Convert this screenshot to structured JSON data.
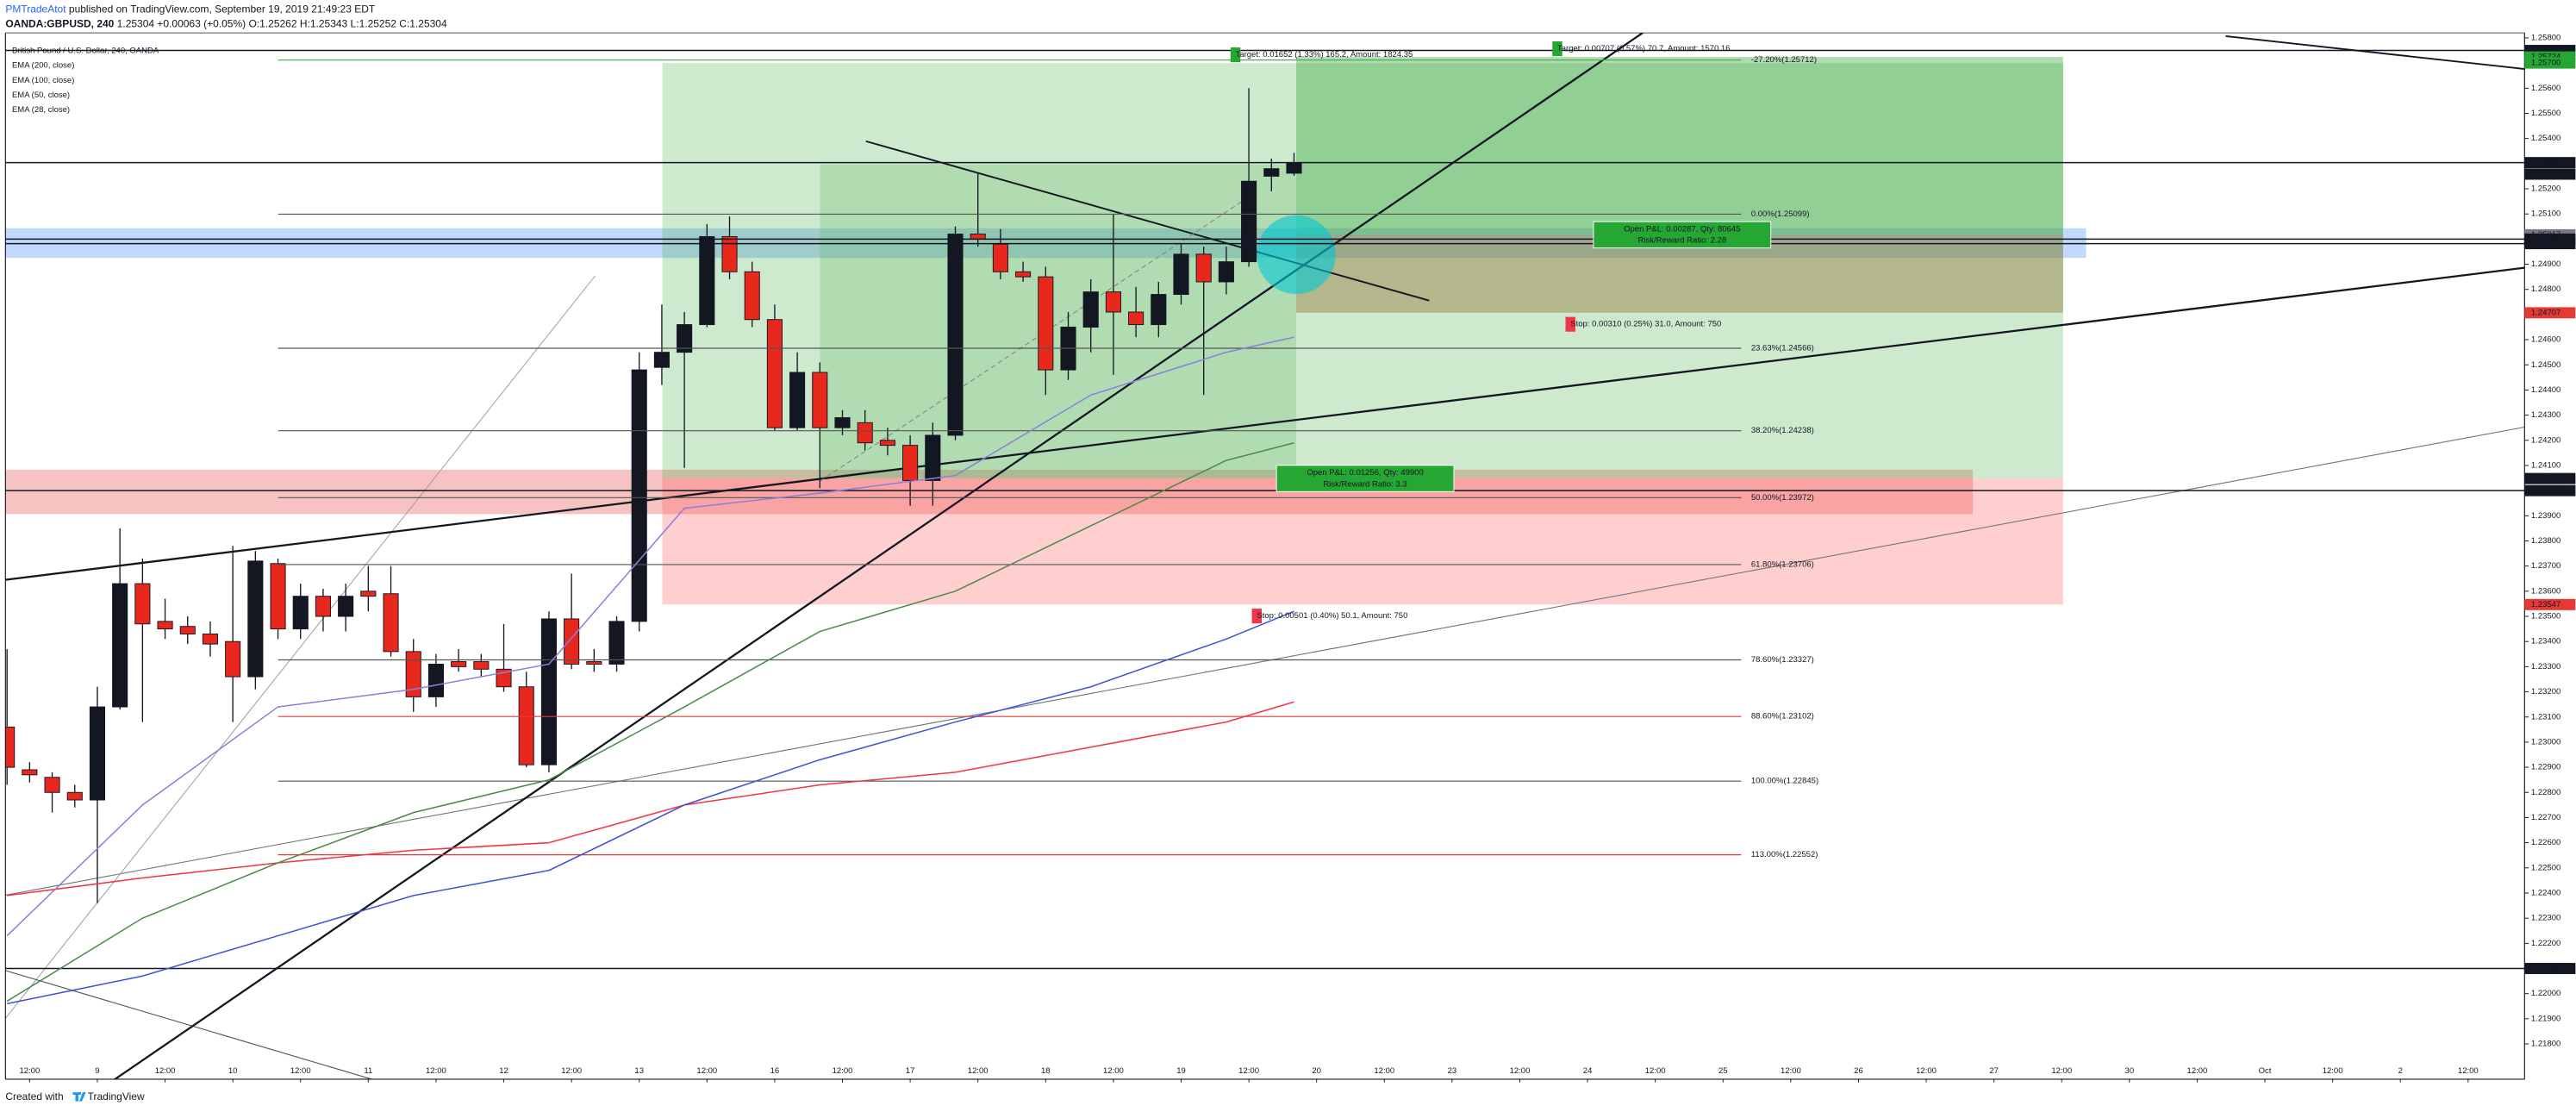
{
  "header": {
    "author": "PMTradeAtot",
    "published": " published on TradingView.com, September 19, 2019 21:49:23 EDT",
    "symbol": "OANDA:GBPUSD, 240",
    "quote": " 1.25304 +0.00063 (+0.05%) O:1.25262 H:1.25343 L:1.25252 C:1.25304"
  },
  "chart_data": {
    "type": "candlestick",
    "title": "British Pound / U.S. Dollar, 240, OANDA",
    "up_color": "#131722",
    "down_color": "#e8271d",
    "open": [
      1.2306,
      1.2289,
      1.2286,
      1.228,
      1.2277,
      1.2314,
      1.2363,
      1.2348,
      1.2346,
      1.2343,
      1.234,
      1.2326,
      1.2371,
      1.2345,
      1.2358,
      1.235,
      1.236,
      1.2359,
      1.2336,
      1.2318,
      1.2332,
      1.2332,
      1.2329,
      1.2322,
      1.2291,
      1.2349,
      1.2332,
      1.2331,
      1.2348,
      1.2449,
      1.2455,
      1.2466,
      1.2501,
      1.2487,
      1.2468,
      1.2425,
      1.2447,
      1.2425,
      1.2427,
      1.242,
      1.2418,
      1.2404,
      1.2422,
      1.2502,
      1.2498,
      1.2487,
      1.2485,
      1.2448,
      1.2465,
      1.2479,
      1.2471,
      1.2466,
      1.2478,
      1.2494,
      1.2483,
      1.2491,
      1.2525,
      1.25262
    ],
    "high": [
      1.2337,
      1.2292,
      1.2288,
      1.2283,
      1.2322,
      1.2385,
      1.2373,
      1.2357,
      1.235,
      1.2348,
      1.2378,
      1.2376,
      1.2373,
      1.2363,
      1.2361,
      1.2363,
      1.237,
      1.237,
      1.2341,
      1.2335,
      1.2337,
      1.2335,
      1.2347,
      1.2328,
      1.2352,
      1.2367,
      1.2337,
      1.235,
      1.2455,
      1.2474,
      1.2471,
      1.2506,
      1.2509,
      1.2491,
      1.2474,
      1.2455,
      1.2451,
      1.2432,
      1.2432,
      1.2425,
      1.2422,
      1.2427,
      1.2505,
      1.2526,
      1.2504,
      1.2491,
      1.2489,
      1.2471,
      1.2484,
      1.251,
      1.2481,
      1.2483,
      1.2498,
      1.2497,
      1.2497,
      1.256,
      1.2532,
      1.25343
    ],
    "low": [
      1.2283,
      1.2284,
      1.2272,
      1.2274,
      1.2236,
      1.2313,
      1.2308,
      1.2341,
      1.2339,
      1.2334,
      1.2308,
      1.2321,
      1.2341,
      1.2341,
      1.2344,
      1.2344,
      1.2352,
      1.2334,
      1.2312,
      1.2314,
      1.2328,
      1.2326,
      1.232,
      1.229,
      1.2288,
      1.2329,
      1.2328,
      1.2328,
      1.2344,
      1.2442,
      1.2409,
      1.2465,
      1.2484,
      1.2465,
      1.2424,
      1.2424,
      1.2401,
      1.2422,
      1.2416,
      1.2414,
      1.2394,
      1.2394,
      1.242,
      1.2497,
      1.2484,
      1.2483,
      1.2438,
      1.2444,
      1.2455,
      1.2446,
      1.2461,
      1.2461,
      1.2474,
      1.2438,
      1.2478,
      1.2489,
      1.2519,
      1.25252
    ],
    "close": [
      1.229,
      1.2287,
      1.228,
      1.2277,
      1.2314,
      1.2363,
      1.2347,
      1.2345,
      1.2343,
      1.2339,
      1.2326,
      1.2372,
      1.2345,
      1.2358,
      1.235,
      1.2358,
      1.2358,
      1.2336,
      1.2318,
      1.2331,
      1.233,
      1.2329,
      1.2322,
      1.2291,
      1.2349,
      1.2331,
      1.2331,
      1.2348,
      1.2448,
      1.2455,
      1.2466,
      1.2501,
      1.2487,
      1.2468,
      1.2425,
      1.2447,
      1.2425,
      1.2429,
      1.2419,
      1.2418,
      1.2404,
      1.2422,
      1.2502,
      1.25,
      1.2487,
      1.2485,
      1.2448,
      1.2465,
      1.2479,
      1.2471,
      1.2466,
      1.2478,
      1.2494,
      1.2483,
      1.2491,
      1.2523,
      1.2528,
      1.25304
    ],
    "xlim": [
      -0.07,
      111.5
    ],
    "xticks": [
      {
        "value": 1,
        "label": "12:00"
      },
      {
        "value": 4,
        "label": "9"
      },
      {
        "value": 7,
        "label": "12:00"
      },
      {
        "value": 10,
        "label": "10"
      },
      {
        "value": 13,
        "label": "12:00"
      },
      {
        "value": 16,
        "label": "11"
      },
      {
        "value": 19,
        "label": "12:00"
      },
      {
        "value": 22,
        "label": "12"
      },
      {
        "value": 25,
        "label": "12:00"
      },
      {
        "value": 28,
        "label": "13"
      },
      {
        "value": 31,
        "label": "12:00"
      },
      {
        "value": 34,
        "label": "16"
      },
      {
        "value": 37,
        "label": "12:00"
      },
      {
        "value": 40,
        "label": "17"
      },
      {
        "value": 43,
        "label": "12:00"
      },
      {
        "value": 46,
        "label": "18"
      },
      {
        "value": 49,
        "label": "12:00"
      },
      {
        "value": 52,
        "label": "19"
      },
      {
        "value": 55,
        "label": "12:00"
      },
      {
        "value": 58,
        "label": "20"
      },
      {
        "value": 61,
        "label": "12:00"
      },
      {
        "value": 64,
        "label": "23"
      },
      {
        "value": 67,
        "label": "12:00"
      },
      {
        "value": 70,
        "label": "24"
      },
      {
        "value": 73,
        "label": "12:00"
      },
      {
        "value": 76,
        "label": "25"
      },
      {
        "value": 79,
        "label": "12:00"
      },
      {
        "value": 82,
        "label": "26"
      },
      {
        "value": 85,
        "label": "12:00"
      },
      {
        "value": 88,
        "label": "27"
      },
      {
        "value": 91,
        "label": "12:00"
      },
      {
        "value": 94,
        "label": "30"
      },
      {
        "value": 97,
        "label": "12:00"
      },
      {
        "value": 100,
        "label": "Oct"
      },
      {
        "value": 103,
        "label": "12:00"
      },
      {
        "value": 106,
        "label": "2"
      },
      {
        "value": 109,
        "label": "12:00"
      }
    ],
    "ylim": [
      1.2166,
      1.2582
    ],
    "yticks": [
      {
        "value": 1.218,
        "label": "1.21800"
      },
      {
        "value": 1.219,
        "label": "1.21900"
      },
      {
        "value": 1.22,
        "label": "1.22000"
      },
      {
        "value": 1.221,
        "label": "1.22100"
      },
      {
        "value": 1.222,
        "label": "1.22200"
      },
      {
        "value": 1.223,
        "label": "1.22300"
      },
      {
        "value": 1.224,
        "label": "1.22400"
      },
      {
        "value": 1.225,
        "label": "1.22500"
      },
      {
        "value": 1.226,
        "label": "1.22600"
      },
      {
        "value": 1.227,
        "label": "1.22700"
      },
      {
        "value": 1.228,
        "label": "1.22800"
      },
      {
        "value": 1.229,
        "label": "1.22900"
      },
      {
        "value": 1.23,
        "label": "1.23000"
      },
      {
        "value": 1.231,
        "label": "1.23100"
      },
      {
        "value": 1.232,
        "label": "1.23200"
      },
      {
        "value": 1.233,
        "label": "1.23300"
      },
      {
        "value": 1.234,
        "label": "1.23400"
      },
      {
        "value": 1.235,
        "label": "1.23500"
      },
      {
        "value": 1.236,
        "label": "1.23600"
      },
      {
        "value": 1.237,
        "label": "1.23700"
      },
      {
        "value": 1.238,
        "label": "1.23800"
      },
      {
        "value": 1.239,
        "label": "1.23900"
      },
      {
        "value": 1.24,
        "label": "1.24000"
      },
      {
        "value": 1.241,
        "label": "1.24100"
      },
      {
        "value": 1.242,
        "label": "1.24200"
      },
      {
        "value": 1.243,
        "label": "1.24300"
      },
      {
        "value": 1.244,
        "label": "1.24400"
      },
      {
        "value": 1.245,
        "label": "1.24500"
      },
      {
        "value": 1.246,
        "label": "1.24600"
      },
      {
        "value": 1.247,
        "label": "1.24700"
      },
      {
        "value": 1.248,
        "label": "1.24800"
      },
      {
        "value": 1.249,
        "label": "1.24900"
      },
      {
        "value": 1.25,
        "label": "1.25000"
      },
      {
        "value": 1.251,
        "label": "1.25100"
      },
      {
        "value": 1.252,
        "label": "1.25200"
      },
      {
        "value": 1.253,
        "label": "1.25300"
      },
      {
        "value": 1.254,
        "label": "1.25400"
      },
      {
        "value": 1.255,
        "label": "1.25500"
      },
      {
        "value": 1.256,
        "label": "1.25600"
      },
      {
        "value": 1.257,
        "label": "1.25700"
      },
      {
        "value": 1.258,
        "label": "1.25800"
      }
    ],
    "overlays": [
      {
        "name": "EMA (200, close)",
        "color": "#f23645",
        "x": [
          0,
          6,
          12,
          18,
          24,
          30,
          36,
          42,
          48,
          54,
          57
        ],
        "values": [
          1.2239,
          1.2246,
          1.2252,
          1.2257,
          1.226,
          1.2275,
          1.2283,
          1.2288,
          1.2298,
          1.2308,
          1.2316
        ]
      },
      {
        "name": "EMA (100, close)",
        "color": "#3f51d6",
        "x": [
          0,
          6,
          12,
          18,
          24,
          30,
          36,
          42,
          48,
          54,
          57
        ],
        "values": [
          1.2196,
          1.2207,
          1.2223,
          1.2239,
          1.2249,
          1.2275,
          1.2293,
          1.2308,
          1.2322,
          1.2341,
          1.2352
        ]
      },
      {
        "name": "EMA (50, close)",
        "color": "#4a8a4a",
        "x": [
          0,
          6,
          12,
          18,
          24,
          30,
          36,
          42,
          48,
          54,
          57
        ],
        "values": [
          1.2197,
          1.223,
          1.2252,
          1.2272,
          1.2285,
          1.2314,
          1.2344,
          1.236,
          1.2386,
          1.2412,
          1.2419
        ]
      },
      {
        "name": "EMA (28, close)",
        "color": "#8a80dc",
        "x": [
          0,
          6,
          12,
          18,
          24,
          30,
          36,
          42,
          48,
          54,
          57
        ],
        "values": [
          1.2223,
          1.2275,
          1.2314,
          1.2321,
          1.2331,
          1.2393,
          1.2399,
          1.2406,
          1.2438,
          1.2455,
          1.2461
        ]
      }
    ],
    "fib": [
      {
        "label": "-27.20%(1.25712)",
        "value": 1.25712,
        "color": "#4caf50"
      },
      {
        "label": "0.00%(1.25099)",
        "value": 1.25099,
        "color": "#555555"
      },
      {
        "label": "23.63%(1.24566)",
        "value": 1.24566,
        "color": "#555555"
      },
      {
        "label": "38.20%(1.24238)",
        "value": 1.24238,
        "color": "#555555"
      },
      {
        "label": "50.00%(1.23972)",
        "value": 1.23972,
        "color": "#555555"
      },
      {
        "label": "61.80%(1.23706)",
        "value": 1.23706,
        "color": "#555555"
      },
      {
        "label": "78.60%(1.23327)",
        "value": 1.23327,
        "color": "#555555"
      },
      {
        "label": "88.60%(1.23102)",
        "value": 1.23102,
        "color": "#e53935"
      },
      {
        "label": "100.00%(1.22845)",
        "value": 1.22845,
        "color": "#555555"
      },
      {
        "label": "113.00%(1.22552)",
        "value": 1.22552,
        "color": "#e53935"
      }
    ],
    "price_labels": [
      {
        "value": 1.2575,
        "label": "1.25750",
        "color": "#131722",
        "line": true
      },
      {
        "value": 1.25724,
        "label": "1.25724",
        "color": "#26a633"
      },
      {
        "value": 1.257,
        "label": "1.25700",
        "color": "#26a633"
      },
      {
        "value": 1.25304,
        "label": "1.25304",
        "color": "#131722",
        "line": true
      },
      {
        "value": 1.25017,
        "label": "1.25017",
        "color": "#787b86"
      },
      {
        "value": 1.25,
        "label": "1.25000",
        "color": "#131722",
        "line": true
      },
      {
        "value": 1.24982,
        "label": "1.24982",
        "color": "#131722",
        "line": true
      },
      {
        "value": 1.24707,
        "label": "1.24707",
        "color": "#e53935"
      },
      {
        "value": 1.24048,
        "label": "1.24048",
        "color": "#131722"
      },
      {
        "value": 1.24,
        "label": "1.24000",
        "color": "#131722",
        "line": true
      },
      {
        "value": 1.23547,
        "label": "1.23547",
        "color": "#e53935"
      },
      {
        "value": 1.221,
        "label": "1.22100",
        "color": "#131722",
        "line": true
      }
    ],
    "countdown": "03:10:38",
    "positions": [
      {
        "entry": 1.25017,
        "target": 1.25724,
        "stop": 1.24707,
        "target_label": "Target: 0.00707 (0.57%) 70.7, Amount: 1570.16",
        "stop_label": "Stop: 0.00310 (0.25%) 31.0, Amount: 750",
        "pnl_label": "Open P&L: 0.00287, Qty: 80645",
        "ratio_label": "Risk/Reward Ratio: 2.28"
      },
      {
        "entry": 1.24048,
        "target": 1.257,
        "stop": 1.23547,
        "target_label": "Target: 0.01652 (1.33%) 165.2, Amount: 1824.35",
        "stop_label": "Stop: 0.00501 (0.40%) 50.1, Amount: 750",
        "pnl_label": "Open P&L: 0.01256, Qty: 49900",
        "ratio_label": "Risk/Reward Ratio: 3.3"
      }
    ]
  },
  "footer": {
    "created": "Created with",
    "brand": "TradingView"
  }
}
